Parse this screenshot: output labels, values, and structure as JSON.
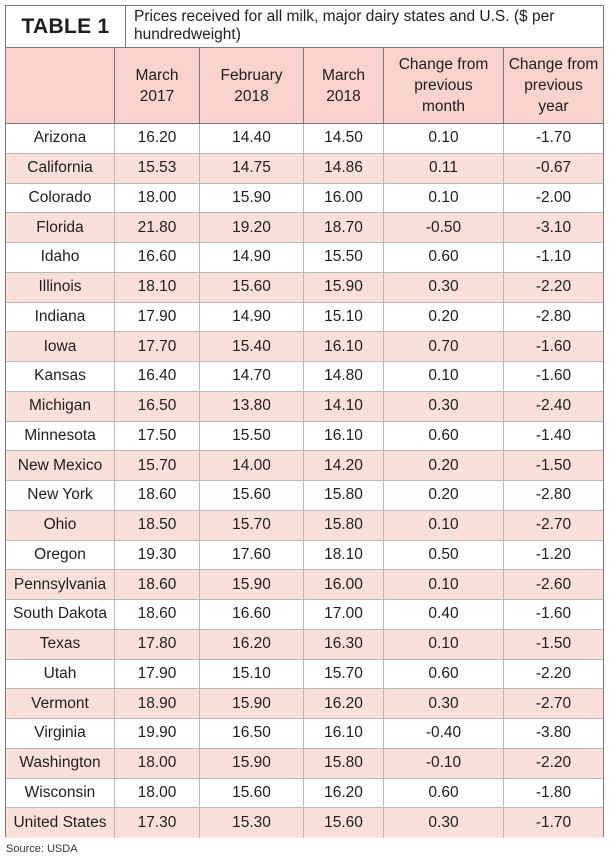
{
  "table_label": "TABLE 1",
  "caption": "Prices received for all milk, major dairy states and U.S. ($ per hundredweight)",
  "headers": [
    "",
    "March\n2017",
    "February\n2018",
    "March\n2018",
    "Change from\nprevious\nmonth",
    "Change from\nprevious\nyear"
  ],
  "rows": [
    [
      "Arizona",
      "16.20",
      "14.40",
      "14.50",
      "0.10",
      "-1.70"
    ],
    [
      "California",
      "15.53",
      "14.75",
      "14.86",
      "0.11",
      "-0.67"
    ],
    [
      "Colorado",
      "18.00",
      "15.90",
      "16.00",
      "0.10",
      "-2.00"
    ],
    [
      "Florida",
      "21.80",
      "19.20",
      "18.70",
      "-0.50",
      "-3.10"
    ],
    [
      "Idaho",
      "16.60",
      "14.90",
      "15.50",
      "0.60",
      "-1.10"
    ],
    [
      "Illinois",
      "18.10",
      "15.60",
      "15.90",
      "0.30",
      "-2.20"
    ],
    [
      "Indiana",
      "17.90",
      "14.90",
      "15.10",
      "0.20",
      "-2.80"
    ],
    [
      "Iowa",
      "17.70",
      "15.40",
      "16.10",
      "0.70",
      "-1.60"
    ],
    [
      "Kansas",
      "16.40",
      "14.70",
      "14.80",
      "0.10",
      "-1.60"
    ],
    [
      "Michigan",
      "16.50",
      "13.80",
      "14.10",
      "0.30",
      "-2.40"
    ],
    [
      "Minnesota",
      "17.50",
      "15.50",
      "16.10",
      "0.60",
      "-1.40"
    ],
    [
      "New Mexico",
      "15.70",
      "14.00",
      "14.20",
      "0.20",
      "-1.50"
    ],
    [
      "New York",
      "18.60",
      "15.60",
      "15.80",
      "0.20",
      "-2.80"
    ],
    [
      "Ohio",
      "18.50",
      "15.70",
      "15.80",
      "0.10",
      "-2.70"
    ],
    [
      "Oregon",
      "19.30",
      "17.60",
      "18.10",
      "0.50",
      "-1.20"
    ],
    [
      "Pennsylvania",
      "18.60",
      "15.90",
      "16.00",
      "0.10",
      "-2.60"
    ],
    [
      "South Dakota",
      "18.60",
      "16.60",
      "17.00",
      "0.40",
      "-1.60"
    ],
    [
      "Texas",
      "17.80",
      "16.20",
      "16.30",
      "0.10",
      "-1.50"
    ],
    [
      "Utah",
      "17.90",
      "15.10",
      "15.70",
      "0.60",
      "-2.20"
    ],
    [
      "Vermont",
      "18.90",
      "15.90",
      "16.20",
      "0.30",
      "-2.70"
    ],
    [
      "Virginia",
      "19.90",
      "16.50",
      "16.10",
      "-0.40",
      "-3.80"
    ],
    [
      "Washington",
      "18.00",
      "15.90",
      "15.80",
      "-0.10",
      "-2.20"
    ],
    [
      "Wisconsin",
      "18.00",
      "15.60",
      "16.20",
      "0.60",
      "-1.80"
    ],
    [
      "United States",
      "17.30",
      "15.30",
      "15.60",
      "0.30",
      "-1.70"
    ]
  ],
  "source": "Source: USDA"
}
